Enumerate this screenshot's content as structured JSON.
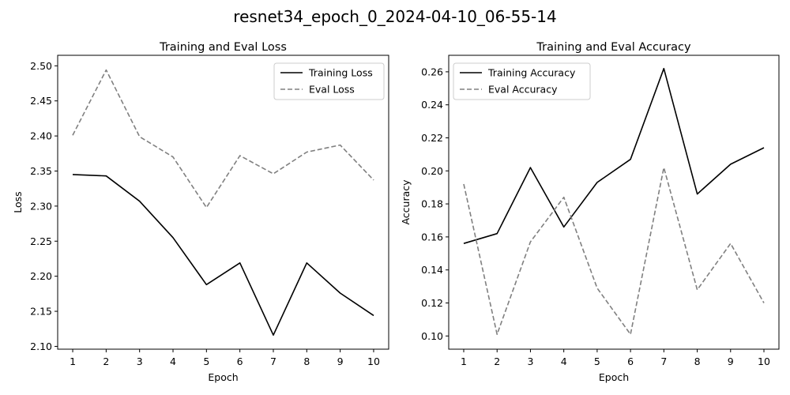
{
  "figure": {
    "title": "resnet34_epoch_0_2024-04-10_06-55-14"
  },
  "chart_data": [
    {
      "type": "line",
      "title": "Training and Eval Loss",
      "xlabel": "Epoch",
      "ylabel": "Loss",
      "x": [
        1,
        2,
        3,
        4,
        5,
        6,
        7,
        8,
        9,
        10
      ],
      "xticks": [
        "1",
        "2",
        "3",
        "4",
        "5",
        "6",
        "7",
        "8",
        "9",
        "10"
      ],
      "xlim": [
        0.55,
        10.45
      ],
      "ylim": [
        2.096,
        2.515
      ],
      "yticks": [
        2.1,
        2.15,
        2.2,
        2.25,
        2.3,
        2.35,
        2.4,
        2.45,
        2.5
      ],
      "yticklabels": [
        "2.10",
        "2.15",
        "2.20",
        "2.25",
        "2.30",
        "2.35",
        "2.40",
        "2.45",
        "2.50"
      ],
      "grid": false,
      "legend_loc": "upper right",
      "series": [
        {
          "name": "Training Loss",
          "color": "#000000",
          "linestyle": "solid",
          "values": [
            2.345,
            2.343,
            2.307,
            2.255,
            2.188,
            2.219,
            2.116,
            2.219,
            2.176,
            2.144
          ]
        },
        {
          "name": "Eval Loss",
          "color": "#808080",
          "linestyle": "dashed",
          "values": [
            2.401,
            2.494,
            2.399,
            2.37,
            2.298,
            2.372,
            2.346,
            2.377,
            2.387,
            2.337
          ]
        }
      ]
    },
    {
      "type": "line",
      "title": "Training and Eval Accuracy",
      "xlabel": "Epoch",
      "ylabel": "Accuracy",
      "x": [
        1,
        2,
        3,
        4,
        5,
        6,
        7,
        8,
        9,
        10
      ],
      "xticks": [
        "1",
        "2",
        "3",
        "4",
        "5",
        "6",
        "7",
        "8",
        "9",
        "10"
      ],
      "xlim": [
        0.55,
        10.45
      ],
      "ylim": [
        0.092,
        0.27
      ],
      "yticks": [
        0.1,
        0.12,
        0.14,
        0.16,
        0.18,
        0.2,
        0.22,
        0.24,
        0.26
      ],
      "yticklabels": [
        "0.10",
        "0.12",
        "0.14",
        "0.16",
        "0.18",
        "0.20",
        "0.22",
        "0.24",
        "0.26"
      ],
      "grid": false,
      "legend_loc": "upper left",
      "series": [
        {
          "name": "Training Accuracy",
          "color": "#000000",
          "linestyle": "solid",
          "values": [
            0.156,
            0.162,
            0.202,
            0.166,
            0.193,
            0.207,
            0.262,
            0.186,
            0.204,
            0.214
          ]
        },
        {
          "name": "Eval Accuracy",
          "color": "#808080",
          "linestyle": "dashed",
          "values": [
            0.192,
            0.101,
            0.157,
            0.184,
            0.129,
            0.101,
            0.202,
            0.128,
            0.156,
            0.12
          ]
        }
      ]
    }
  ]
}
